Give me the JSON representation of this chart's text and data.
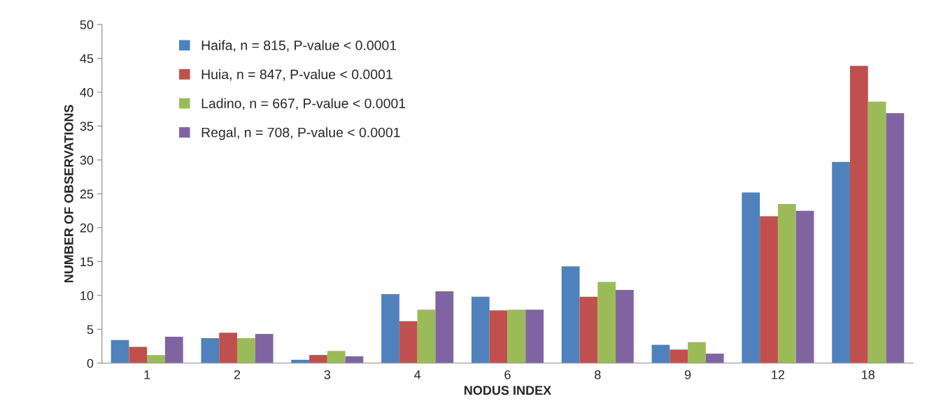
{
  "chart_data": {
    "type": "bar",
    "xlabel": "NODUS INDEX",
    "ylabel": "NUMBER OF OBSERVATIONS",
    "categories": [
      "1",
      "2",
      "3",
      "4",
      "6",
      "8",
      "9",
      "12",
      "18"
    ],
    "series": [
      {
        "name": "Haifa, n = 815, P-value < 0.0001",
        "color": "#4f81bd",
        "values": [
          3.4,
          3.7,
          0.5,
          10.2,
          9.8,
          14.3,
          2.7,
          25.2,
          29.7
        ]
      },
      {
        "name": "Huia, n = 847, P-value < 0.0001",
        "color": "#c0504d",
        "values": [
          2.4,
          4.5,
          1.2,
          6.2,
          7.8,
          9.8,
          2.0,
          21.7,
          43.9
        ]
      },
      {
        "name": "Ladino, n = 667, P-value < 0.0001",
        "color": "#9bbb59",
        "values": [
          1.2,
          3.7,
          1.8,
          7.9,
          7.9,
          12.0,
          3.1,
          23.5,
          38.6
        ]
      },
      {
        "name": "Regal, n = 708, P-value < 0.0001",
        "color": "#8064a2",
        "values": [
          3.9,
          4.3,
          1.0,
          10.6,
          7.9,
          10.8,
          1.4,
          22.5,
          36.9
        ]
      }
    ],
    "ylim": [
      0,
      50
    ],
    "yticks": [
      0,
      5,
      10,
      15,
      20,
      25,
      30,
      35,
      40,
      45,
      50
    ],
    "grid": false,
    "legend": "top left"
  }
}
